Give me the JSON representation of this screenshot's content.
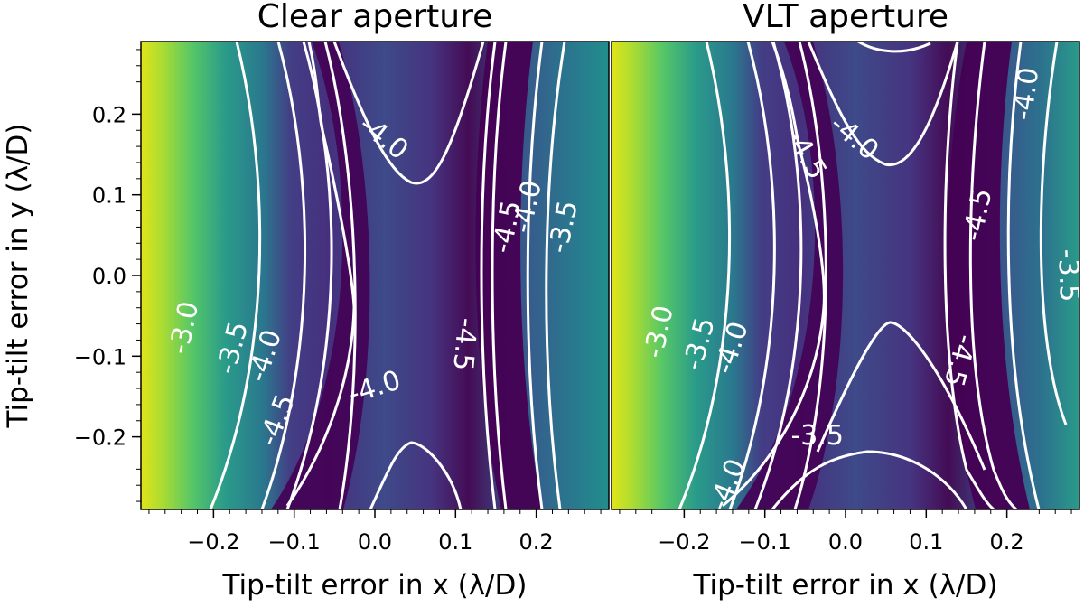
{
  "chart_data": [
    {
      "type": "heatmap",
      "title": "Clear aperture",
      "xlabel": "Tip-tilt error in x (λ/D)",
      "ylabel": "Tip-tilt error in y (λ/D)",
      "xlim": [
        -0.29,
        0.29
      ],
      "ylim": [
        -0.29,
        0.29
      ],
      "x_ticks": [
        "−0.2",
        "−0.1",
        "0.0",
        "0.1",
        "0.2"
      ],
      "y_ticks": [
        "−0.2",
        "−0.1",
        "0.0",
        "0.1",
        "0.2"
      ],
      "colormap": "viridis",
      "contour_levels": [
        -4.5,
        -4.0,
        -3.5,
        -3.0
      ],
      "contour_labels": [
        {
          "text": "-4.0",
          "x": 0.01,
          "y": 0.17,
          "rotation": 38
        },
        {
          "text": "-4.5",
          "x": 0.165,
          "y": 0.06,
          "rotation": -78
        },
        {
          "text": "-4.0",
          "x": 0.19,
          "y": 0.085,
          "rotation": -78
        },
        {
          "text": "-3.5",
          "x": 0.235,
          "y": 0.06,
          "rotation": -78
        },
        {
          "text": "-4.5",
          "x": 0.11,
          "y": -0.085,
          "rotation": 95
        },
        {
          "text": "-4.0",
          "x": 0.0,
          "y": -0.14,
          "rotation": -18
        },
        {
          "text": "-3.0",
          "x": -0.235,
          "y": -0.065,
          "rotation": -78
        },
        {
          "text": "-3.5",
          "x": -0.175,
          "y": -0.09,
          "rotation": -75
        },
        {
          "text": "-4.0",
          "x": -0.135,
          "y": -0.1,
          "rotation": -72
        },
        {
          "text": "-4.5",
          "x": -0.12,
          "y": -0.18,
          "rotation": -68
        }
      ]
    },
    {
      "type": "heatmap",
      "title": "VLT aperture",
      "xlabel": "Tip-tilt error in x (λ/D)",
      "ylabel": "",
      "xlim": [
        -0.29,
        0.29
      ],
      "ylim": [
        -0.29,
        0.29
      ],
      "x_ticks": [
        "−0.2",
        "−0.1",
        "0.0",
        "0.1",
        "0.2"
      ],
      "y_ticks": [],
      "colormap": "viridis",
      "contour_levels": [
        -4.5,
        -4.0,
        -3.5,
        -3.0
      ],
      "contour_labels": [
        {
          "text": "-4.0",
          "x": 0.01,
          "y": 0.17,
          "rotation": 40
        },
        {
          "text": "-4.5",
          "x": -0.05,
          "y": 0.15,
          "rotation": 60
        },
        {
          "text": "-4.5",
          "x": 0.165,
          "y": 0.075,
          "rotation": -78
        },
        {
          "text": "-4.0",
          "x": 0.225,
          "y": 0.225,
          "rotation": -82
        },
        {
          "text": "-3.5",
          "x": 0.275,
          "y": 0.0,
          "rotation": 88
        },
        {
          "text": "-4.5",
          "x": 0.14,
          "y": -0.105,
          "rotation": 105
        },
        {
          "text": "-3.5",
          "x": -0.035,
          "y": -0.2,
          "rotation": 0
        },
        {
          "text": "-3.0",
          "x": -0.23,
          "y": -0.07,
          "rotation": -78
        },
        {
          "text": "-3.5",
          "x": -0.18,
          "y": -0.085,
          "rotation": -75
        },
        {
          "text": "-4.0",
          "x": -0.14,
          "y": -0.09,
          "rotation": -72
        },
        {
          "text": "-4.0",
          "x": -0.145,
          "y": -0.26,
          "rotation": -68
        }
      ]
    }
  ]
}
